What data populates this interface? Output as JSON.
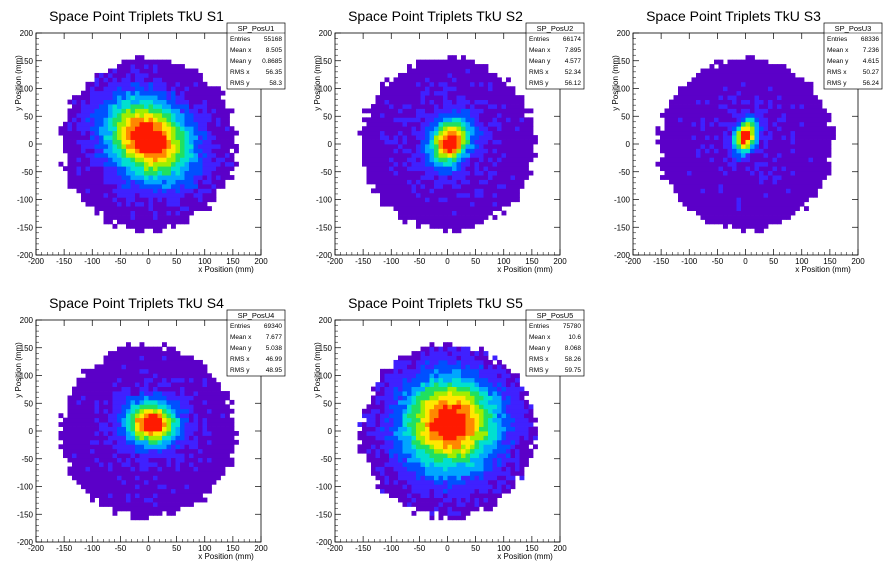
{
  "chart_data": [
    {
      "type": "heatmap",
      "title": "Space Point Triplets TkU S1",
      "xlabel": "x Position (mm)",
      "ylabel": "y Position (mm)",
      "xlim": [
        -200,
        200
      ],
      "ylim": [
        -200,
        200
      ],
      "xticks": [
        -200,
        -150,
        -100,
        -50,
        0,
        50,
        100,
        150,
        200
      ],
      "yticks": [
        -200,
        -150,
        -100,
        -50,
        0,
        50,
        100,
        150,
        200
      ],
      "stats": {
        "name": "SP_PosU1",
        "entries": "55168",
        "mean_x": "8.505",
        "mean_y": "0.8685",
        "rms_x": "56.35",
        "rms_y": "58.3"
      },
      "stats_labels": [
        "Entries",
        "Mean x",
        "Mean y",
        "RMS x",
        "RMS y"
      ],
      "radius": 155,
      "peak": {
        "x": 0,
        "y": 10,
        "sx": 55,
        "sy": 42,
        "amp": 0.95,
        "angle": -40
      },
      "background": 0.12
    },
    {
      "type": "heatmap",
      "title": "Space Point Triplets TkU S2",
      "xlabel": "x Position (mm)",
      "ylabel": "y Position (mm)",
      "xlim": [
        -200,
        200
      ],
      "ylim": [
        -200,
        200
      ],
      "xticks": [
        -200,
        -150,
        -100,
        -50,
        0,
        50,
        100,
        150,
        200
      ],
      "yticks": [
        -200,
        -150,
        -100,
        -50,
        0,
        50,
        100,
        150,
        200
      ],
      "stats": {
        "name": "SP_PosU2",
        "entries": "66174",
        "mean_x": "7.895",
        "mean_y": "4.577",
        "rms_x": "52.34",
        "rms_y": "56.12"
      },
      "stats_labels": [
        "Entries",
        "Mean x",
        "Mean y",
        "RMS x",
        "RMS y"
      ],
      "radius": 155,
      "peak": {
        "x": 5,
        "y": 5,
        "sx": 22,
        "sy": 30,
        "amp": 0.9,
        "angle": -30
      },
      "background": 0.12
    },
    {
      "type": "heatmap",
      "title": "Space Point Triplets TkU S3",
      "xlabel": "x Position (mm)",
      "ylabel": "y Position (mm)",
      "xlim": [
        -200,
        200
      ],
      "ylim": [
        -200,
        200
      ],
      "xticks": [
        -200,
        -150,
        -100,
        -50,
        0,
        50,
        100,
        150,
        200
      ],
      "yticks": [
        -200,
        -150,
        -100,
        -50,
        0,
        50,
        100,
        150,
        200
      ],
      "stats": {
        "name": "SP_PosU3",
        "entries": "68336",
        "mean_x": "7.236",
        "mean_y": "4.615",
        "rms_x": "50.27",
        "rms_y": "56.24"
      },
      "stats_labels": [
        "Entries",
        "Mean x",
        "Mean y",
        "RMS x",
        "RMS y"
      ],
      "radius": 155,
      "peak": {
        "x": 0,
        "y": 15,
        "sx": 12,
        "sy": 20,
        "amp": 0.95,
        "angle": -20
      },
      "background": 0.1
    },
    {
      "type": "heatmap",
      "title": "Space Point Triplets TkU S4",
      "xlabel": "x Position (mm)",
      "ylabel": "y Position (mm)",
      "xlim": [
        -200,
        200
      ],
      "ylim": [
        -200,
        200
      ],
      "xticks": [
        -200,
        -150,
        -100,
        -50,
        0,
        50,
        100,
        150,
        200
      ],
      "yticks": [
        -200,
        -150,
        -100,
        -50,
        0,
        50,
        100,
        150,
        200
      ],
      "stats": {
        "name": "SP_PosU4",
        "entries": "69340",
        "mean_x": "7.677",
        "mean_y": "5.038",
        "rms_x": "46.99",
        "rms_y": "48.95"
      },
      "stats_labels": [
        "Entries",
        "Mean x",
        "Mean y",
        "RMS x",
        "RMS y"
      ],
      "radius": 155,
      "peak": {
        "x": 5,
        "y": 15,
        "sx": 30,
        "sy": 25,
        "amp": 0.95,
        "angle": 0
      },
      "background": 0.12
    },
    {
      "type": "heatmap",
      "title": "Space Point Triplets TkU S5",
      "xlabel": "x Position (mm)",
      "ylabel": "y Position (mm)",
      "xlim": [
        -200,
        200
      ],
      "ylim": [
        -200,
        200
      ],
      "xticks": [
        -200,
        -150,
        -100,
        -50,
        0,
        50,
        100,
        150,
        200
      ],
      "yticks": [
        -200,
        -150,
        -100,
        -50,
        0,
        50,
        100,
        150,
        200
      ],
      "stats": {
        "name": "SP_PosU5",
        "entries": "75780",
        "mean_x": "10.6",
        "mean_y": "8.068",
        "rms_x": "58.26",
        "rms_y": "59.75"
      },
      "stats_labels": [
        "Entries",
        "Mean x",
        "Mean y",
        "RMS x",
        "RMS y"
      ],
      "radius": 155,
      "peak": {
        "x": 5,
        "y": 15,
        "sx": 55,
        "sy": 55,
        "amp": 0.9,
        "angle": 0
      },
      "background": 0.15
    }
  ],
  "colors": {
    "axis": "#000000",
    "background": "#ffffff",
    "stats_box_border": "#000000"
  },
  "palette": [
    "#5b00c8",
    "#3f21ff",
    "#0050ff",
    "#00a6ff",
    "#00e0d0",
    "#20e060",
    "#a0ee00",
    "#ffe800",
    "#ff8800",
    "#ff1a00"
  ]
}
